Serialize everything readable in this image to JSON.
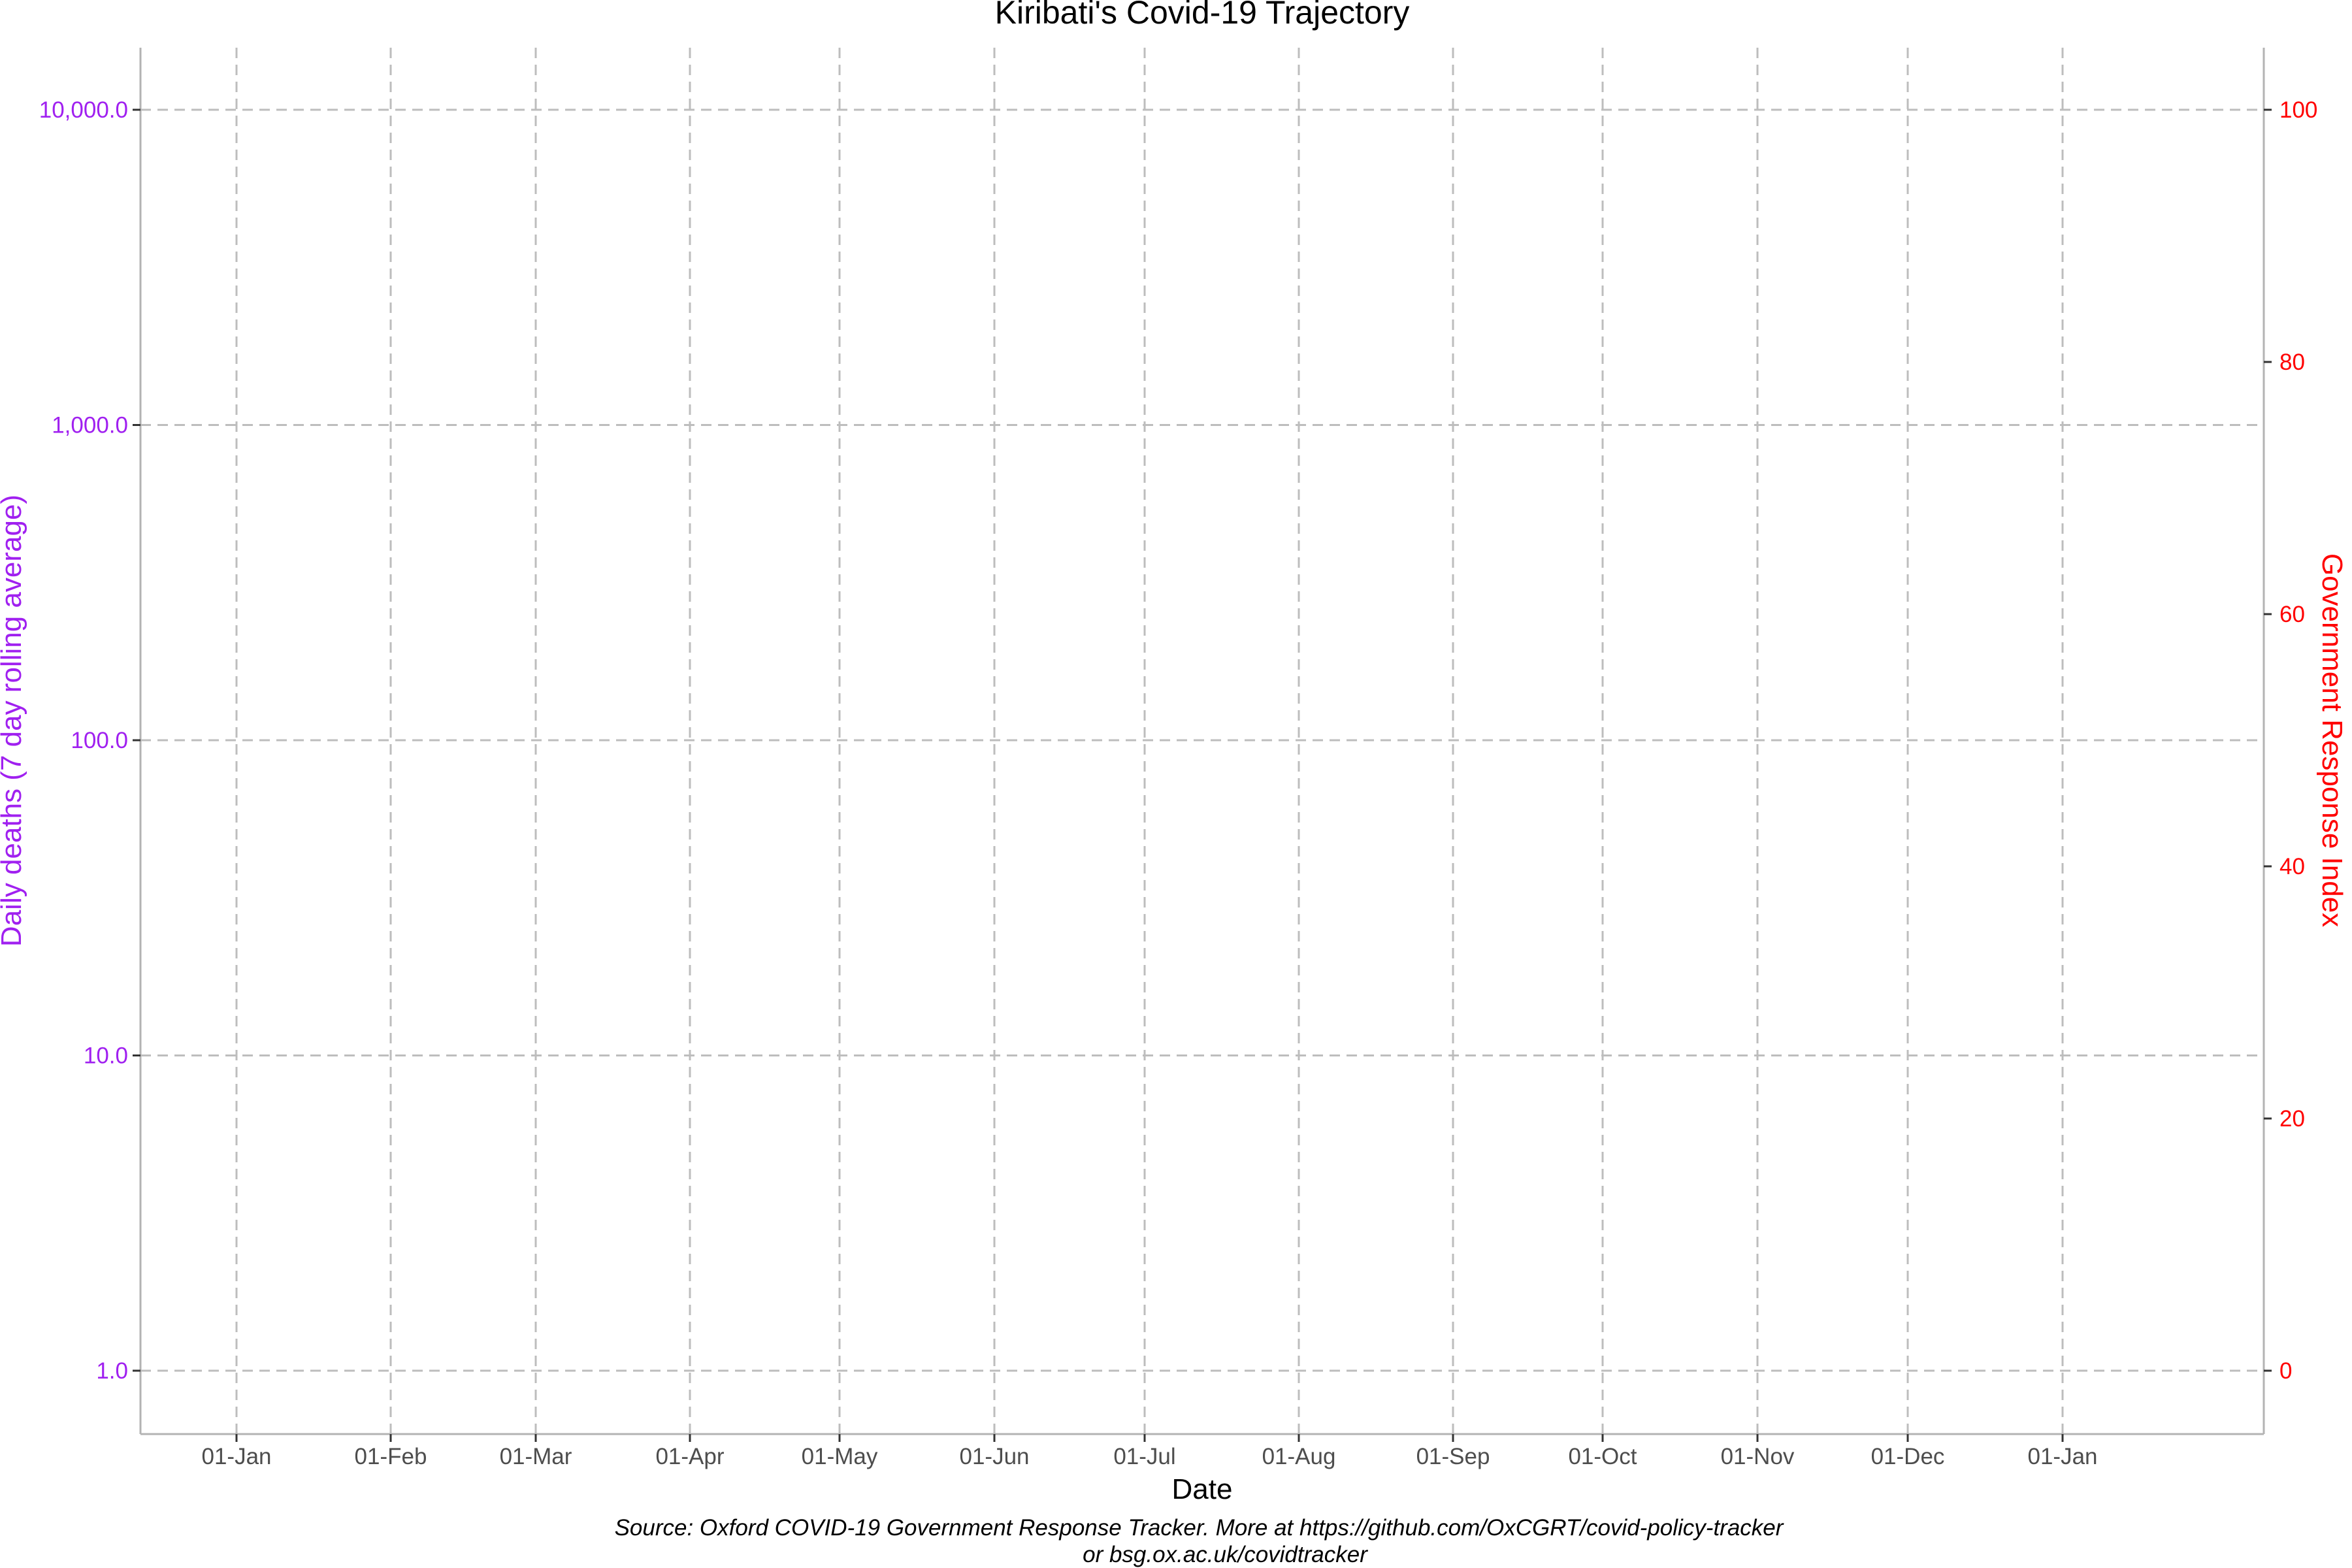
{
  "chart_data": {
    "type": "line",
    "title": "Kiribati's Covid-19 Trajectory",
    "xlabel": "Date",
    "ylabel_left": "Daily deaths (7 day rolling average)",
    "ylabel_right": "Government Response Index",
    "x_ticks": [
      "01-Jan",
      "01-Feb",
      "01-Mar",
      "01-Apr",
      "01-May",
      "01-Jun",
      "01-Jul",
      "01-Aug",
      "01-Sep",
      "01-Oct",
      "01-Nov",
      "01-Dec",
      "01-Jan"
    ],
    "y_left_ticks": [
      "1.0",
      "10.0",
      "100.0",
      "1,000.0",
      "10,000.0"
    ],
    "y_left_scale": "log10",
    "y_left_range": [
      1,
      10000
    ],
    "y_right_ticks": [
      "0",
      "20",
      "40",
      "60",
      "80",
      "100"
    ],
    "y_right_range": [
      0,
      100
    ],
    "grid": true,
    "series": [],
    "caption_line1": "Source: Oxford COVID-19 Government Response Tracker. More at https://github.com/OxCGRT/covid-policy-tracker",
    "caption_line2": "or bsg.ox.ac.uk/covidtracker",
    "colors": {
      "left_axis": "#a020f0",
      "right_axis": "#ff0000",
      "grid": "#bdbdbd"
    }
  }
}
